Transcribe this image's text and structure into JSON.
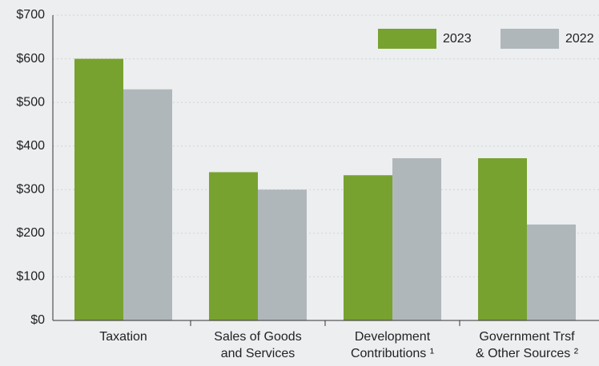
{
  "chart_data": {
    "type": "bar",
    "categories": [
      [
        "Taxation"
      ],
      [
        "Sales of Goods",
        "and Services"
      ],
      [
        "Development",
        "Contributions ¹"
      ],
      [
        "Government Trsf",
        "& Other Sources ²"
      ]
    ],
    "series": [
      {
        "name": "2023",
        "color": "#77a22f",
        "values": [
          600,
          340,
          333,
          372
        ]
      },
      {
        "name": "2022",
        "color": "#b0b7bb",
        "values": [
          530,
          300,
          372,
          220
        ]
      }
    ],
    "ylim": [
      0,
      700
    ],
    "yticks": [
      {
        "value": 0,
        "label": "$0"
      },
      {
        "value": 100,
        "label": "$100"
      },
      {
        "value": 200,
        "label": "$200"
      },
      {
        "value": 300,
        "label": "$300"
      },
      {
        "value": 400,
        "label": "$400"
      },
      {
        "value": 500,
        "label": "$500"
      },
      {
        "value": 600,
        "label": "$600"
      },
      {
        "value": 700,
        "label": "$700"
      }
    ],
    "grid": true,
    "legend": "top-right"
  }
}
